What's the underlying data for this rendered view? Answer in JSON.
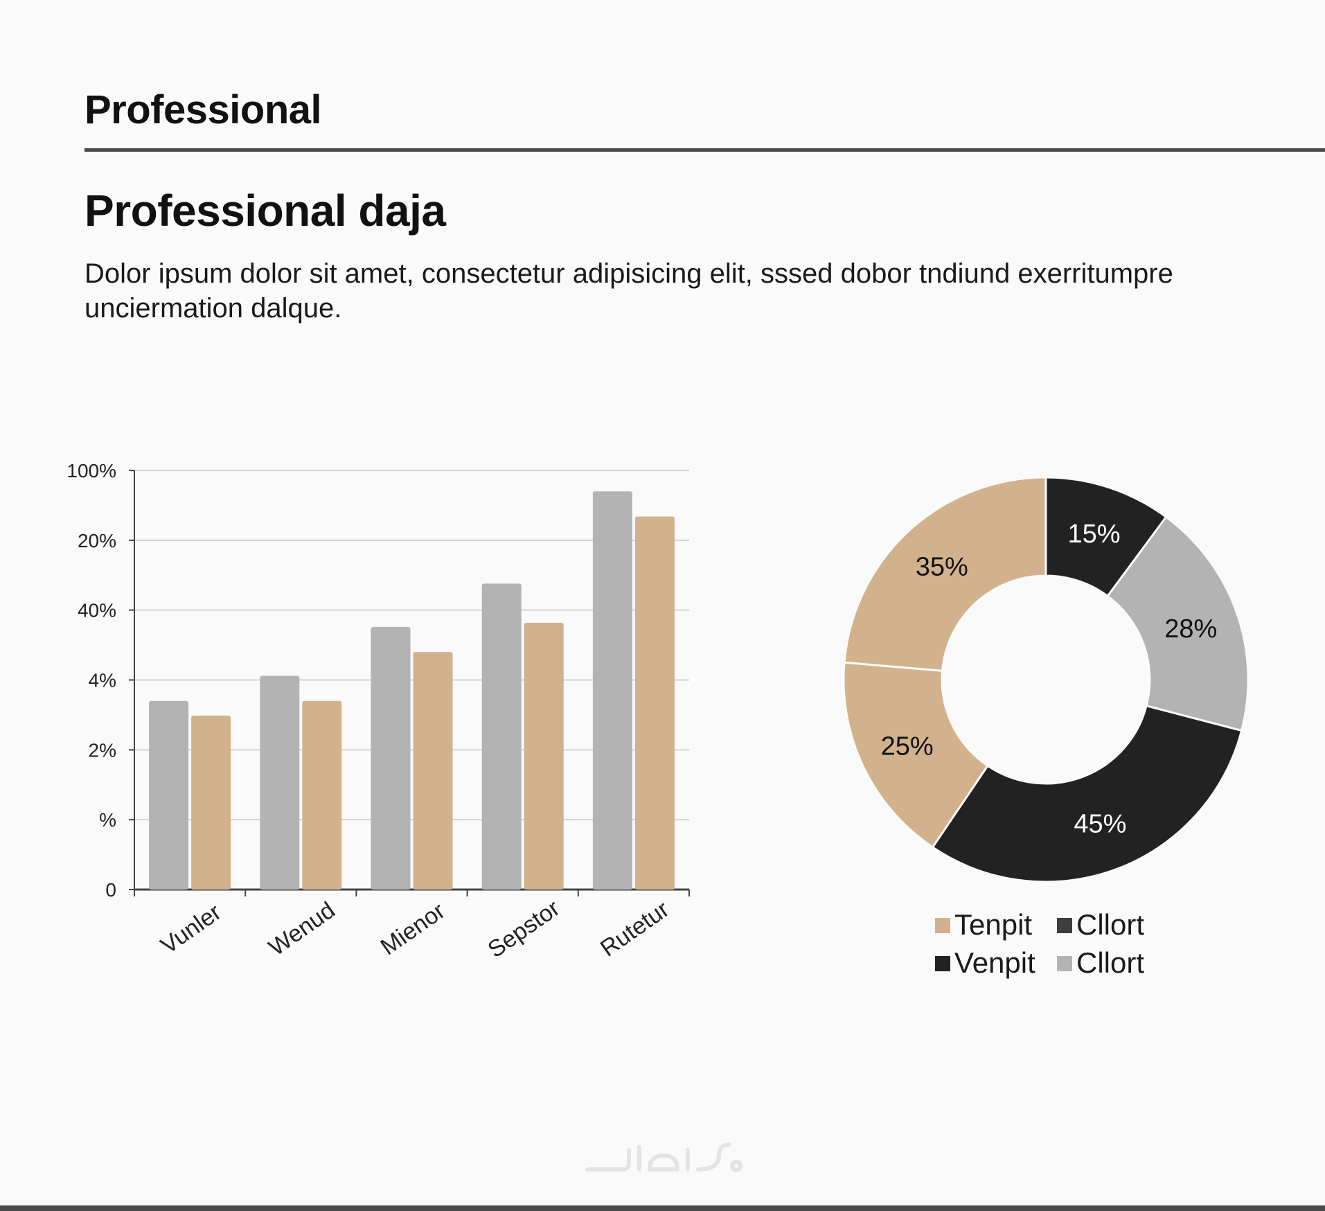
{
  "header": {
    "title": "Professional"
  },
  "section": {
    "title": "Professional daja",
    "body": "Dolor ipsum dolor sit amet, consectetur adipisicing elit, sssed dobor tndiund exerritumpre unciermation dalque."
  },
  "colors": {
    "gray": "#b3b3b3",
    "tan": "#d1b28c",
    "black": "#222222",
    "dark": "#3d3d3d",
    "light": "#b3b3b3"
  },
  "watermark": {
    "type": "logo"
  },
  "chart_data": [
    {
      "type": "bar",
      "y_tick_labels": [
        "0",
        "%",
        "2%",
        "4%",
        "40%",
        "20%",
        "100%"
      ],
      "ylim": [
        0,
        6
      ],
      "grid": true,
      "categories": [
        "Vunler",
        "Wenud",
        "Mienor",
        "Sepstor",
        "Rutetur"
      ],
      "series": [
        {
          "color": "#b3b3b3",
          "values": [
            2.7,
            3.06,
            3.76,
            4.38,
            5.7
          ]
        },
        {
          "color": "#d1b28c",
          "values": [
            2.49,
            2.7,
            3.4,
            3.82,
            5.34
          ]
        }
      ]
    },
    {
      "type": "pie",
      "donut": true,
      "slices": [
        {
          "label": "15%",
          "value": 15,
          "color": "#222222",
          "label_color": "#ffffff"
        },
        {
          "label": "28%",
          "value": 28,
          "color": "#b3b3b3",
          "label_color": "#111111"
        },
        {
          "label": "45%",
          "value": 45,
          "color": "#222222",
          "label_color": "#ffffff"
        },
        {
          "label": "25%",
          "value": 25,
          "color": "#d1b28c",
          "label_color": "#111111"
        },
        {
          "label": "35%",
          "value": 35,
          "color": "#d1b28c",
          "label_color": "#111111"
        }
      ],
      "legend": [
        {
          "label": "Tenpit",
          "color": "#d1b28c"
        },
        {
          "label": "Cllort",
          "color": "#3d3d3d"
        },
        {
          "label": "Venpit",
          "color": "#222222"
        },
        {
          "label": "Cllort",
          "color": "#b3b3b3"
        }
      ],
      "legend_position": "bottom"
    }
  ]
}
